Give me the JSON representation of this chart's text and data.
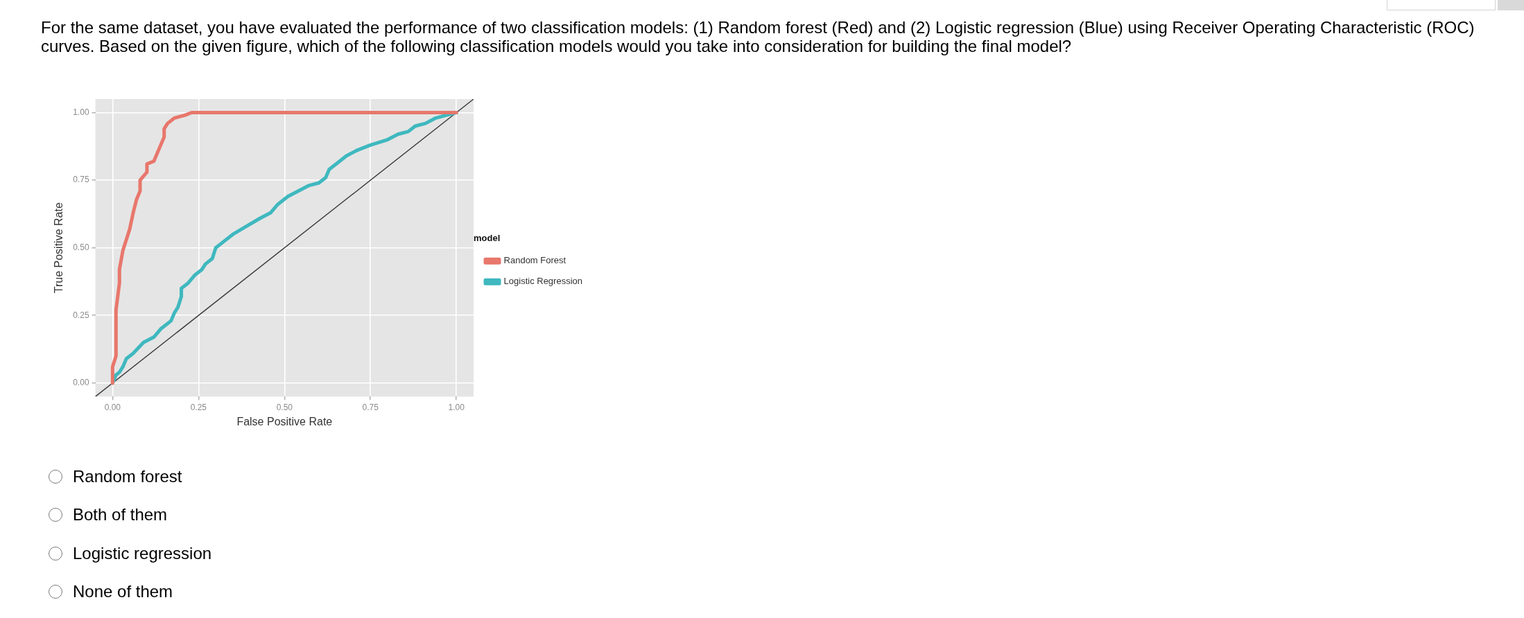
{
  "chart_data": {
    "type": "line",
    "title": "For the same dataset, you have evaluated the performance of two classification models: (1) Random forest (Red) and (2) Logistic regression (Blue) using Receiver Operating Characteristic (ROC) curves. Based on the given figure, which of the following classification models would you take into consideration for building the final model?",
    "xlabel": "False Positive Rate",
    "ylabel": "True Positive Rate",
    "legend_title": "model",
    "legend": "right",
    "grid": true,
    "marker": "none",
    "line_style": "solid",
    "xlim": [
      -0.05,
      1.05
    ],
    "ylim": [
      -0.05,
      1.05
    ],
    "xticks": [
      {
        "value": 0,
        "label": "0.00"
      },
      0.25,
      {
        "value": 0.5,
        "label": "0.50"
      },
      0.75,
      {
        "value": 1,
        "label": "1.00"
      }
    ],
    "yticks": [
      {
        "value": 0,
        "label": "0.00"
      },
      0.25,
      {
        "value": 0.5,
        "label": "0.50"
      },
      0.75,
      {
        "value": 1,
        "label": "1.00"
      }
    ],
    "series": [
      {
        "name": "Random Forest",
        "color": "#e8776c",
        "x": [
          0,
          0,
          0.01,
          0.01,
          0.02,
          0.02,
          0.03,
          0.04,
          0.05,
          0.06,
          0.07,
          0.08,
          0.08,
          0.1,
          0.1,
          0.12,
          0.13,
          0.14,
          0.15,
          0.15,
          0.16,
          0.18,
          0.21,
          0.23,
          1
        ],
        "values": [
          0,
          0.06,
          0.1,
          0.27,
          0.37,
          0.42,
          0.49,
          0.53,
          0.57,
          0.63,
          0.68,
          0.71,
          0.75,
          0.78,
          0.81,
          0.82,
          0.85,
          0.88,
          0.91,
          0.94,
          0.96,
          0.98,
          0.99,
          1,
          1
        ]
      },
      {
        "name": "Logistic Regression",
        "color": "#3fb8bf",
        "x": [
          0,
          0.01,
          0.02,
          0.03,
          0.04,
          0.06,
          0.09,
          0.12,
          0.14,
          0.17,
          0.18,
          0.19,
          0.2,
          0.2,
          0.22,
          0.24,
          0.26,
          0.27,
          0.29,
          0.3,
          0.32,
          0.35,
          0.39,
          0.43,
          0.46,
          0.48,
          0.51,
          0.54,
          0.57,
          0.6,
          0.62,
          0.63,
          0.65,
          0.68,
          0.71,
          0.75,
          0.8,
          0.83,
          0.86,
          0.88,
          0.91,
          0.94,
          0.97,
          1
        ],
        "values": [
          0,
          0.03,
          0.04,
          0.06,
          0.09,
          0.11,
          0.15,
          0.17,
          0.2,
          0.23,
          0.26,
          0.28,
          0.32,
          0.35,
          0.37,
          0.4,
          0.42,
          0.44,
          0.46,
          0.5,
          0.52,
          0.55,
          0.58,
          0.61,
          0.63,
          0.66,
          0.69,
          0.71,
          0.73,
          0.74,
          0.76,
          0.79,
          0.81,
          0.84,
          0.86,
          0.88,
          0.9,
          0.92,
          0.93,
          0.95,
          0.96,
          0.98,
          0.99,
          1
        ]
      },
      {
        "type": "line",
        "color": "#3a3a3a",
        "x": [
          -0.05,
          1.05
        ],
        "values": [
          -0.05,
          1.05
        ]
      }
    ],
    "annotations": [
      "Random forest",
      "Both of them",
      "Logistic regression",
      "None of them"
    ]
  }
}
